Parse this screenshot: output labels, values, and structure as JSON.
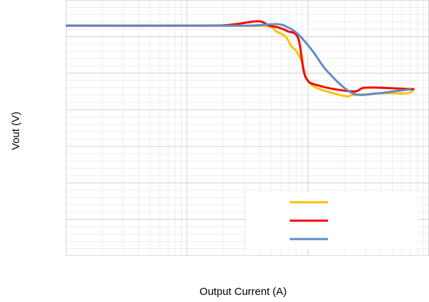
{
  "chart_data": {
    "type": "line",
    "title": "",
    "xlabel": "Output Current (A)",
    "ylabel": "Vout (V)",
    "x_scale": "log",
    "x_decades": 3,
    "y_divisions": 7,
    "grid": true,
    "minor_grid": true,
    "legend_position": "bottom-right",
    "legend_labels_visible": false,
    "series": [
      {
        "color": "#FFC000",
        "values": [
          [
            0.0,
            0.7
          ],
          [
            0.3,
            0.7
          ],
          [
            0.43,
            0.7
          ],
          [
            0.51,
            0.71
          ],
          [
            0.56,
            0.72
          ],
          [
            0.58,
            0.86
          ],
          [
            0.605,
            1.0
          ],
          [
            0.62,
            1.25
          ],
          [
            0.635,
            1.4
          ],
          [
            0.65,
            1.7
          ],
          [
            0.66,
            2.1
          ],
          [
            0.69,
            2.4
          ],
          [
            0.77,
            2.63
          ],
          [
            0.79,
            2.6
          ],
          [
            0.88,
            2.55
          ],
          [
            0.94,
            2.55
          ],
          [
            0.955,
            2.46
          ]
        ]
      },
      {
        "color": "#FF0000",
        "values": [
          [
            0.0,
            0.7
          ],
          [
            0.38,
            0.7
          ],
          [
            0.46,
            0.67
          ],
          [
            0.53,
            0.58
          ],
          [
            0.56,
            0.7
          ],
          [
            0.585,
            0.75
          ],
          [
            0.61,
            0.85
          ],
          [
            0.64,
            1.05
          ],
          [
            0.66,
            2.1
          ],
          [
            0.7,
            2.35
          ],
          [
            0.79,
            2.5
          ],
          [
            0.82,
            2.4
          ],
          [
            0.87,
            2.4
          ],
          [
            0.96,
            2.44
          ]
        ]
      },
      {
        "color": "#5B8DC9",
        "values": [
          [
            0.0,
            0.7
          ],
          [
            0.3,
            0.7
          ],
          [
            0.5,
            0.7
          ],
          [
            0.58,
            0.66
          ],
          [
            0.61,
            0.74
          ],
          [
            0.64,
            0.94
          ],
          [
            0.68,
            1.4
          ],
          [
            0.72,
            1.95
          ],
          [
            0.79,
            2.55
          ],
          [
            0.86,
            2.55
          ],
          [
            0.9,
            2.5
          ],
          [
            0.95,
            2.44
          ]
        ]
      }
    ]
  }
}
